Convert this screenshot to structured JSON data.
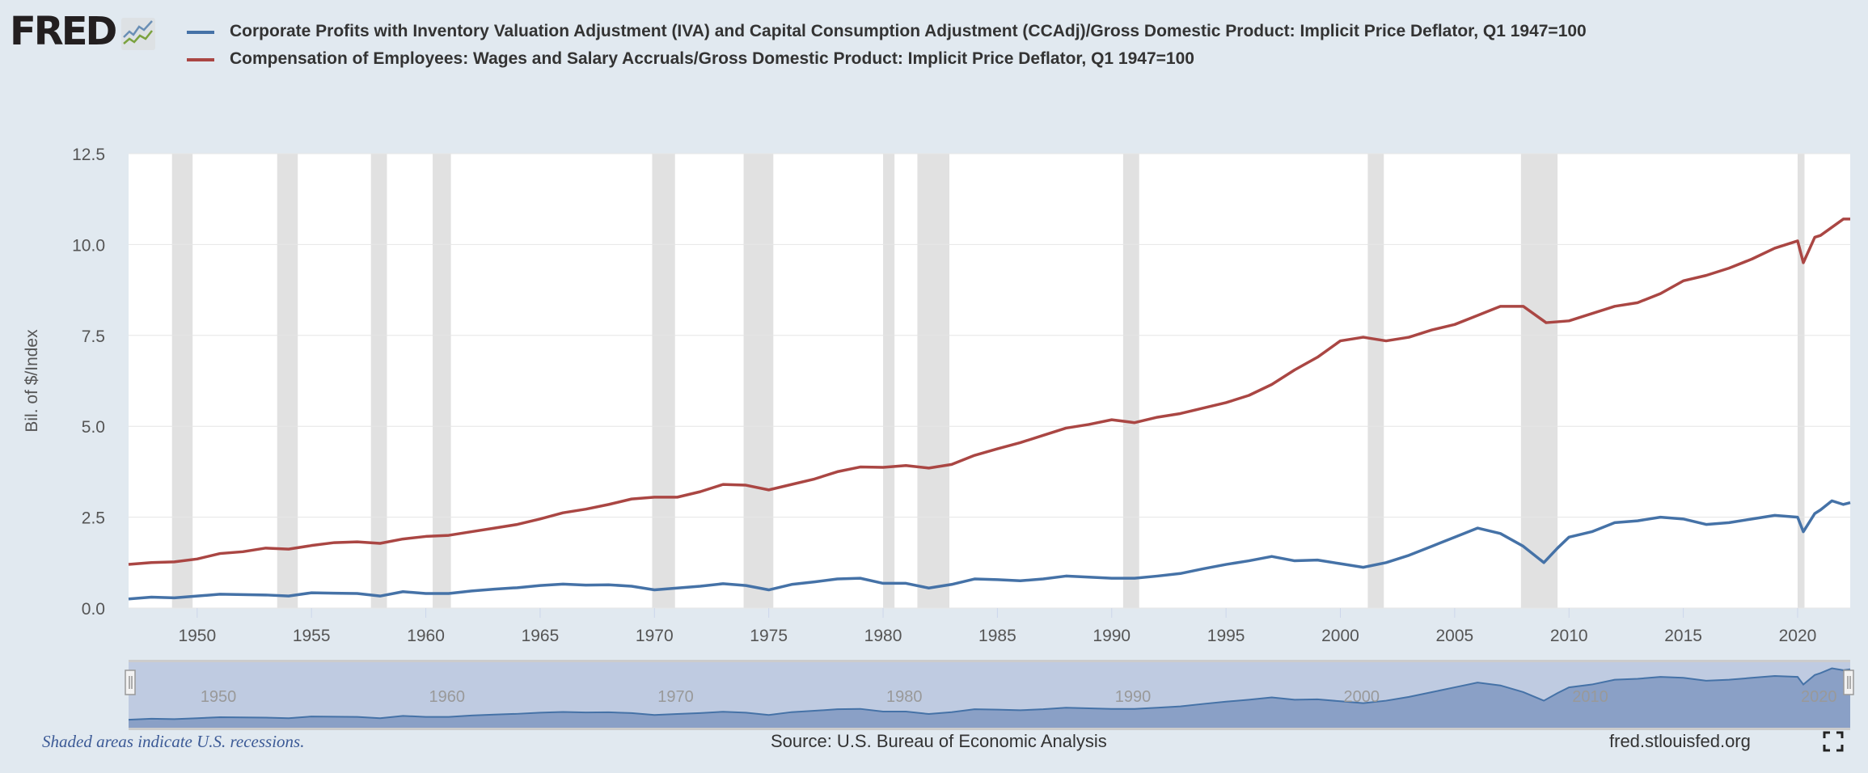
{
  "logo": {
    "text": "FRED"
  },
  "footer": {
    "note": "Shaded areas indicate U.S. recessions.",
    "source": "Source: U.S. Bureau of Economic Analysis",
    "url": "fred.stlouisfed.org",
    "fullscreen_icon": "fullscreen-icon"
  },
  "chart_data": {
    "type": "line",
    "title": "",
    "xlabel": "",
    "ylabel": "Bil. of $/Index",
    "xlim": [
      1947,
      2022.3
    ],
    "ylim": [
      0,
      12.5
    ],
    "yticks": [
      "0.0",
      "2.5",
      "5.0",
      "7.5",
      "10.0",
      "12.5"
    ],
    "xticks": [
      "1950",
      "1955",
      "1960",
      "1965",
      "1970",
      "1975",
      "1980",
      "1985",
      "1990",
      "1995",
      "2000",
      "2005",
      "2010",
      "2015",
      "2020"
    ],
    "navigator_ticks": [
      "1950",
      "1960",
      "1970",
      "1980",
      "1990",
      "2000",
      "2010",
      "2020"
    ],
    "grid": "horizontal",
    "legend_position": "top",
    "recessions": [
      [
        1948.9,
        1949.8
      ],
      [
        1953.5,
        1954.4
      ],
      [
        1957.6,
        1958.3
      ],
      [
        1960.3,
        1961.1
      ],
      [
        1969.9,
        1970.9
      ],
      [
        1973.9,
        1975.2
      ],
      [
        1980.0,
        1980.5
      ],
      [
        1981.5,
        1982.9
      ],
      [
        1990.5,
        1991.2
      ],
      [
        2001.2,
        2001.9
      ],
      [
        2007.9,
        2009.5
      ],
      [
        2020.0,
        2020.3
      ]
    ],
    "series": [
      {
        "name": "Corporate Profits with Inventory Valuation Adjustment (IVA) and Capital Consumption Adjustment (CCAdj)/Gross Domestic Product: Implicit Price Deflator, Q1 1947=100",
        "color": "#4572a7",
        "x": [
          1947,
          1948,
          1949,
          1950,
          1951,
          1952,
          1953,
          1954,
          1955,
          1956,
          1957,
          1958,
          1959,
          1960,
          1961,
          1962,
          1963,
          1964,
          1965,
          1966,
          1967,
          1968,
          1969,
          1970,
          1971,
          1972,
          1973,
          1974,
          1975,
          1976,
          1977,
          1978,
          1979,
          1980,
          1981,
          1982,
          1983,
          1984,
          1985,
          1986,
          1987,
          1988,
          1989,
          1990,
          1991,
          1992,
          1993,
          1994,
          1995,
          1996,
          1997,
          1998,
          1999,
          2000,
          2001,
          2002,
          2003,
          2004,
          2005,
          2006,
          2007,
          2008,
          2008.9,
          2009.5,
          2010,
          2011,
          2012,
          2013,
          2014,
          2015,
          2016,
          2017,
          2018,
          2019,
          2020,
          2020.25,
          2020.75,
          2021,
          2021.5,
          2022,
          2022.3
        ],
        "values": [
          0.25,
          0.3,
          0.28,
          0.33,
          0.38,
          0.37,
          0.36,
          0.33,
          0.42,
          0.41,
          0.4,
          0.33,
          0.45,
          0.4,
          0.4,
          0.47,
          0.52,
          0.56,
          0.62,
          0.66,
          0.63,
          0.64,
          0.6,
          0.5,
          0.55,
          0.6,
          0.67,
          0.62,
          0.5,
          0.65,
          0.72,
          0.8,
          0.82,
          0.68,
          0.68,
          0.55,
          0.65,
          0.8,
          0.78,
          0.75,
          0.8,
          0.88,
          0.85,
          0.82,
          0.82,
          0.88,
          0.95,
          1.08,
          1.2,
          1.3,
          1.42,
          1.3,
          1.32,
          1.22,
          1.12,
          1.25,
          1.45,
          1.7,
          1.95,
          2.2,
          2.05,
          1.7,
          1.25,
          1.65,
          1.95,
          2.1,
          2.35,
          2.4,
          2.5,
          2.45,
          2.3,
          2.35,
          2.45,
          2.55,
          2.5,
          2.1,
          2.6,
          2.7,
          2.95,
          2.85,
          2.9
        ]
      },
      {
        "name": "Compensation of Employees: Wages and Salary Accruals/Gross Domestic Product: Implicit Price Deflator, Q1 1947=100",
        "color": "#aa4643",
        "x": [
          1947,
          1948,
          1949,
          1950,
          1951,
          1952,
          1953,
          1954,
          1955,
          1956,
          1957,
          1958,
          1959,
          1960,
          1961,
          1962,
          1963,
          1964,
          1965,
          1966,
          1967,
          1968,
          1969,
          1970,
          1971,
          1972,
          1973,
          1974,
          1975,
          1976,
          1977,
          1978,
          1979,
          1980,
          1981,
          1982,
          1983,
          1984,
          1985,
          1986,
          1987,
          1988,
          1989,
          1990,
          1991,
          1992,
          1993,
          1994,
          1995,
          1996,
          1997,
          1998,
          1999,
          2000,
          2001,
          2002,
          2003,
          2004,
          2005,
          2006,
          2007,
          2008,
          2009,
          2010,
          2011,
          2012,
          2013,
          2014,
          2015,
          2016,
          2017,
          2018,
          2019,
          2020,
          2020.25,
          2020.75,
          2021,
          2022,
          2022.3
        ],
        "values": [
          1.2,
          1.25,
          1.27,
          1.35,
          1.5,
          1.55,
          1.65,
          1.62,
          1.72,
          1.8,
          1.82,
          1.78,
          1.9,
          1.97,
          2.0,
          2.1,
          2.2,
          2.3,
          2.45,
          2.62,
          2.72,
          2.85,
          3.0,
          3.05,
          3.05,
          3.2,
          3.4,
          3.38,
          3.25,
          3.4,
          3.55,
          3.75,
          3.88,
          3.87,
          3.92,
          3.85,
          3.95,
          4.2,
          4.38,
          4.55,
          4.75,
          4.95,
          5.05,
          5.18,
          5.1,
          5.25,
          5.35,
          5.5,
          5.65,
          5.85,
          6.15,
          6.55,
          6.9,
          7.35,
          7.45,
          7.35,
          7.45,
          7.65,
          7.8,
          8.05,
          8.3,
          8.3,
          7.85,
          7.9,
          8.1,
          8.3,
          8.4,
          8.65,
          9.0,
          9.15,
          9.35,
          9.6,
          9.9,
          10.1,
          9.5,
          10.2,
          10.25,
          10.7,
          10.7
        ]
      }
    ]
  }
}
